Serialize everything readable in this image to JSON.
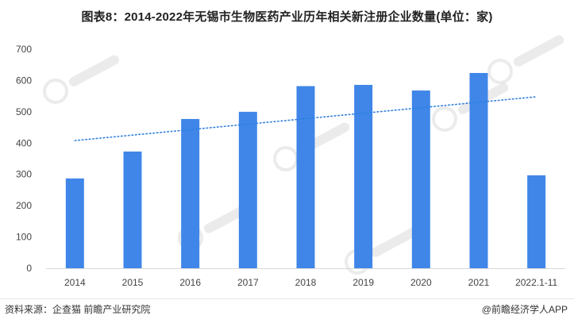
{
  "title": "图表8：2014-2022年无锡市生物医药产业历年相关新注册企业数量(单位：家)",
  "footer": {
    "source": "资料来源：企查猫 前瞻产业研究院",
    "brand": "@前瞻经济学人APP"
  },
  "watermark": "前瞻产业研究院",
  "colors": {
    "bar": "#3f86e8",
    "trend": "#2f7fe0",
    "axis": "#d9d9d9",
    "tick_text": "#444444",
    "watermark": "#dcdcdc"
  },
  "chart_data": {
    "type": "bar",
    "title": "图表8：2014-2022年无锡市生物医药产业历年相关新注册企业数量(单位：家)",
    "xlabel": "",
    "ylabel": "",
    "categories": [
      "2014",
      "2015",
      "2016",
      "2017",
      "2018",
      "2019",
      "2020",
      "2021",
      "2022.1-11"
    ],
    "values": [
      287,
      373,
      477,
      500,
      582,
      586,
      568,
      624,
      297
    ],
    "ylim": [
      0,
      700
    ],
    "yticks": [
      0,
      100,
      200,
      300,
      400,
      500,
      600,
      700
    ],
    "trendline": {
      "style": "dotted",
      "start": 408,
      "end": 548
    },
    "grid": false,
    "legend": "none"
  }
}
